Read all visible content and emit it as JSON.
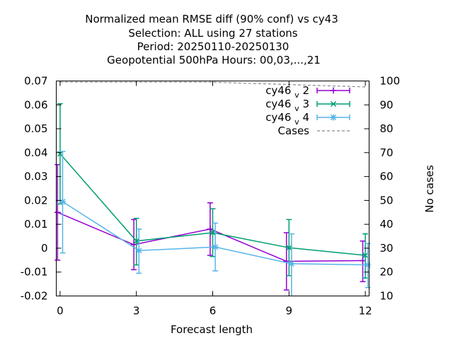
{
  "title_lines": [
    "Normalized mean RMSE diff (90% conf) vs cy43",
    "Selection: ALL using    27 stations",
    "Period: 20250110-20250130",
    "Geopotential 500hPa   Hours:  00,03,...,21"
  ],
  "chart_data": {
    "type": "line",
    "xlabel": "Forecast length",
    "ylabel": "",
    "y2label": "No cases",
    "x_ticks": [
      0,
      3,
      6,
      9,
      12
    ],
    "x_tick_labels": [
      "0",
      "3",
      "6",
      "9",
      "12"
    ],
    "xlim": [
      -0.15,
      12.15
    ],
    "ylim": [
      -0.02,
      0.07
    ],
    "y_ticks": [
      -0.02,
      -0.01,
      0,
      0.01,
      0.02,
      0.03,
      0.04,
      0.05,
      0.06,
      0.07
    ],
    "y_tick_labels": [
      "-0.02",
      "-0.01",
      "0",
      "0.01",
      "0.02",
      "0.03",
      "0.04",
      "0.05",
      "0.06",
      "0.07"
    ],
    "y2lim": [
      10,
      100
    ],
    "y2_ticks": [
      10,
      20,
      30,
      40,
      50,
      60,
      70,
      80,
      90,
      100
    ],
    "y2_tick_labels": [
      "10",
      "20",
      "30",
      "40",
      "50",
      "60",
      "70",
      "80",
      "90",
      "100"
    ],
    "legend_position": "top-right",
    "grid": false,
    "series": [
      {
        "name_base": "cy46",
        "name_sub": "v",
        "name_num": "2",
        "color": "#9400d3",
        "marker": "plus",
        "x": [
          -0.1,
          2.9,
          5.9,
          8.9,
          11.9
        ],
        "y": [
          0.015,
          0.0015,
          0.008,
          -0.0055,
          -0.0052
        ],
        "err_low": [
          -0.005,
          -0.009,
          -0.003,
          -0.0175,
          -0.014
        ],
        "err_high": [
          0.035,
          0.012,
          0.019,
          0.0065,
          0.003
        ]
      },
      {
        "name_base": "cy46",
        "name_sub": "v",
        "name_num": "3",
        "color": "#009e73",
        "marker": "cross",
        "x": [
          0,
          3,
          6,
          9,
          12
        ],
        "y": [
          0.0395,
          0.003,
          0.0065,
          0.0002,
          -0.003
        ],
        "err_low": [
          0.0185,
          -0.007,
          -0.0035,
          -0.0115,
          -0.0125
        ],
        "err_high": [
          0.0605,
          0.0125,
          0.0165,
          0.012,
          0.006
        ]
      },
      {
        "name_base": "cy46",
        "name_sub": "v",
        "name_num": "4",
        "color": "#56b4e9",
        "marker": "star",
        "x": [
          0.1,
          3.1,
          6.1,
          9.1,
          12.1
        ],
        "y": [
          0.0195,
          -0.001,
          0.0005,
          -0.0065,
          -0.007
        ],
        "err_low": [
          -0.002,
          -0.0105,
          -0.0095,
          -0.0205,
          -0.0165
        ],
        "err_high": [
          0.0405,
          0.008,
          0.0105,
          0.006,
          0.002
        ]
      }
    ],
    "cases": {
      "name": "Cases",
      "color": "#888888",
      "x": [
        0,
        3,
        6,
        9,
        12
      ],
      "y": [
        99.5,
        99.5,
        99.5,
        98.5,
        97.5
      ]
    }
  }
}
